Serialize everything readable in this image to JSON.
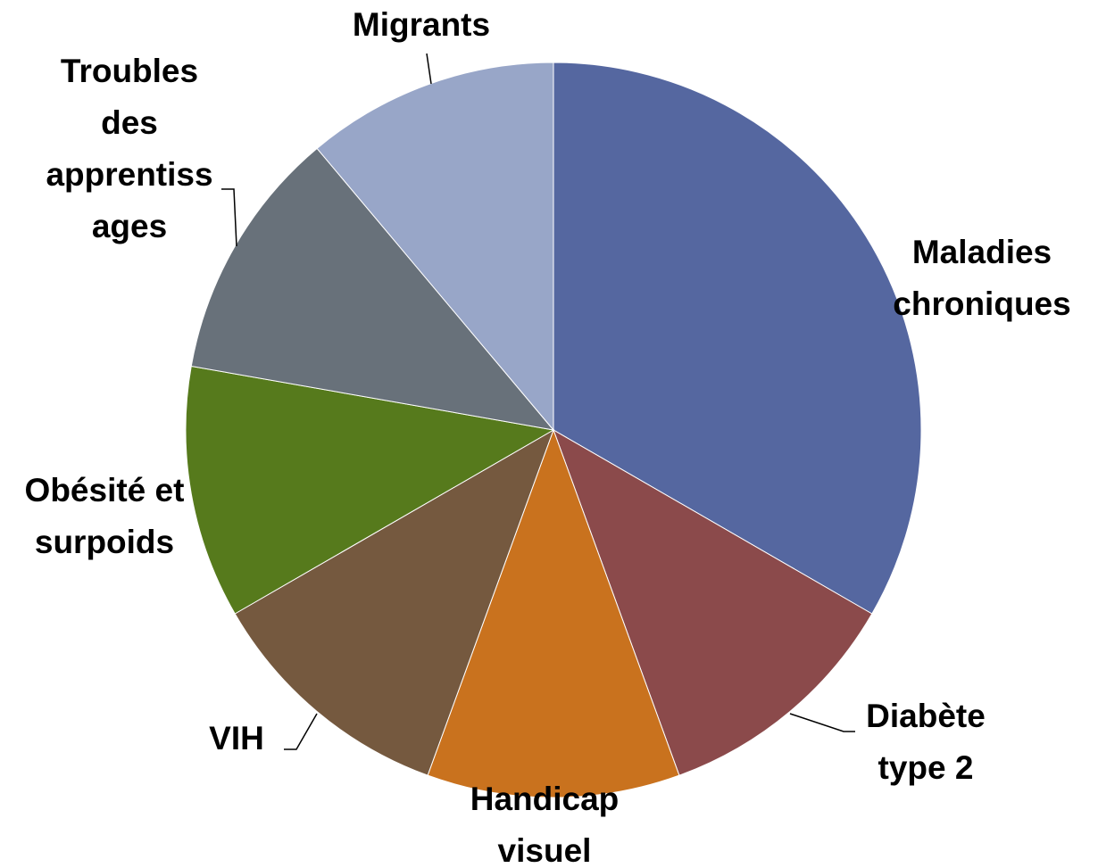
{
  "chart_data": {
    "type": "pie",
    "categories": [
      "Maladies\nchroniques",
      "Diabète\ntype 2",
      "Handicap\nvisuel",
      "VIH",
      "Obésité et\nsurpoids",
      "Troubles\ndes\napprentiss\nages",
      "Migrants"
    ],
    "values": [
      33.3,
      11.1,
      11.1,
      11.1,
      11.1,
      11.1,
      11.1
    ],
    "colors": [
      "#5567a0",
      "#8b4a4b",
      "#c9721e",
      "#75593f",
      "#567a1c",
      "#68717a",
      "#98a6c8"
    ]
  }
}
